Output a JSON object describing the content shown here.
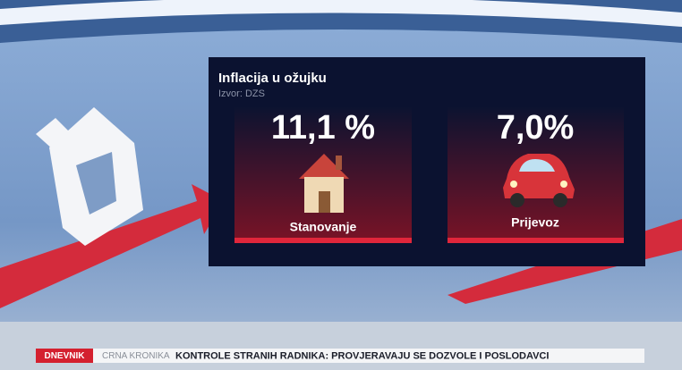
{
  "panel": {
    "title": "Inflacija u ožujku",
    "source": "Izvor: DZS",
    "cards": [
      {
        "value": "11,1 %",
        "label": "Stanovanje"
      },
      {
        "value": "7,0%",
        "label": "Prijevoz"
      }
    ]
  },
  "ticker": {
    "program": "DNEVNIK",
    "section": "CRNA KRONIKA",
    "headline": "KONTROLE STRANIH RADNIKA: PROVJERAVAJU SE DOZVOLE I POSLODAVCI"
  }
}
